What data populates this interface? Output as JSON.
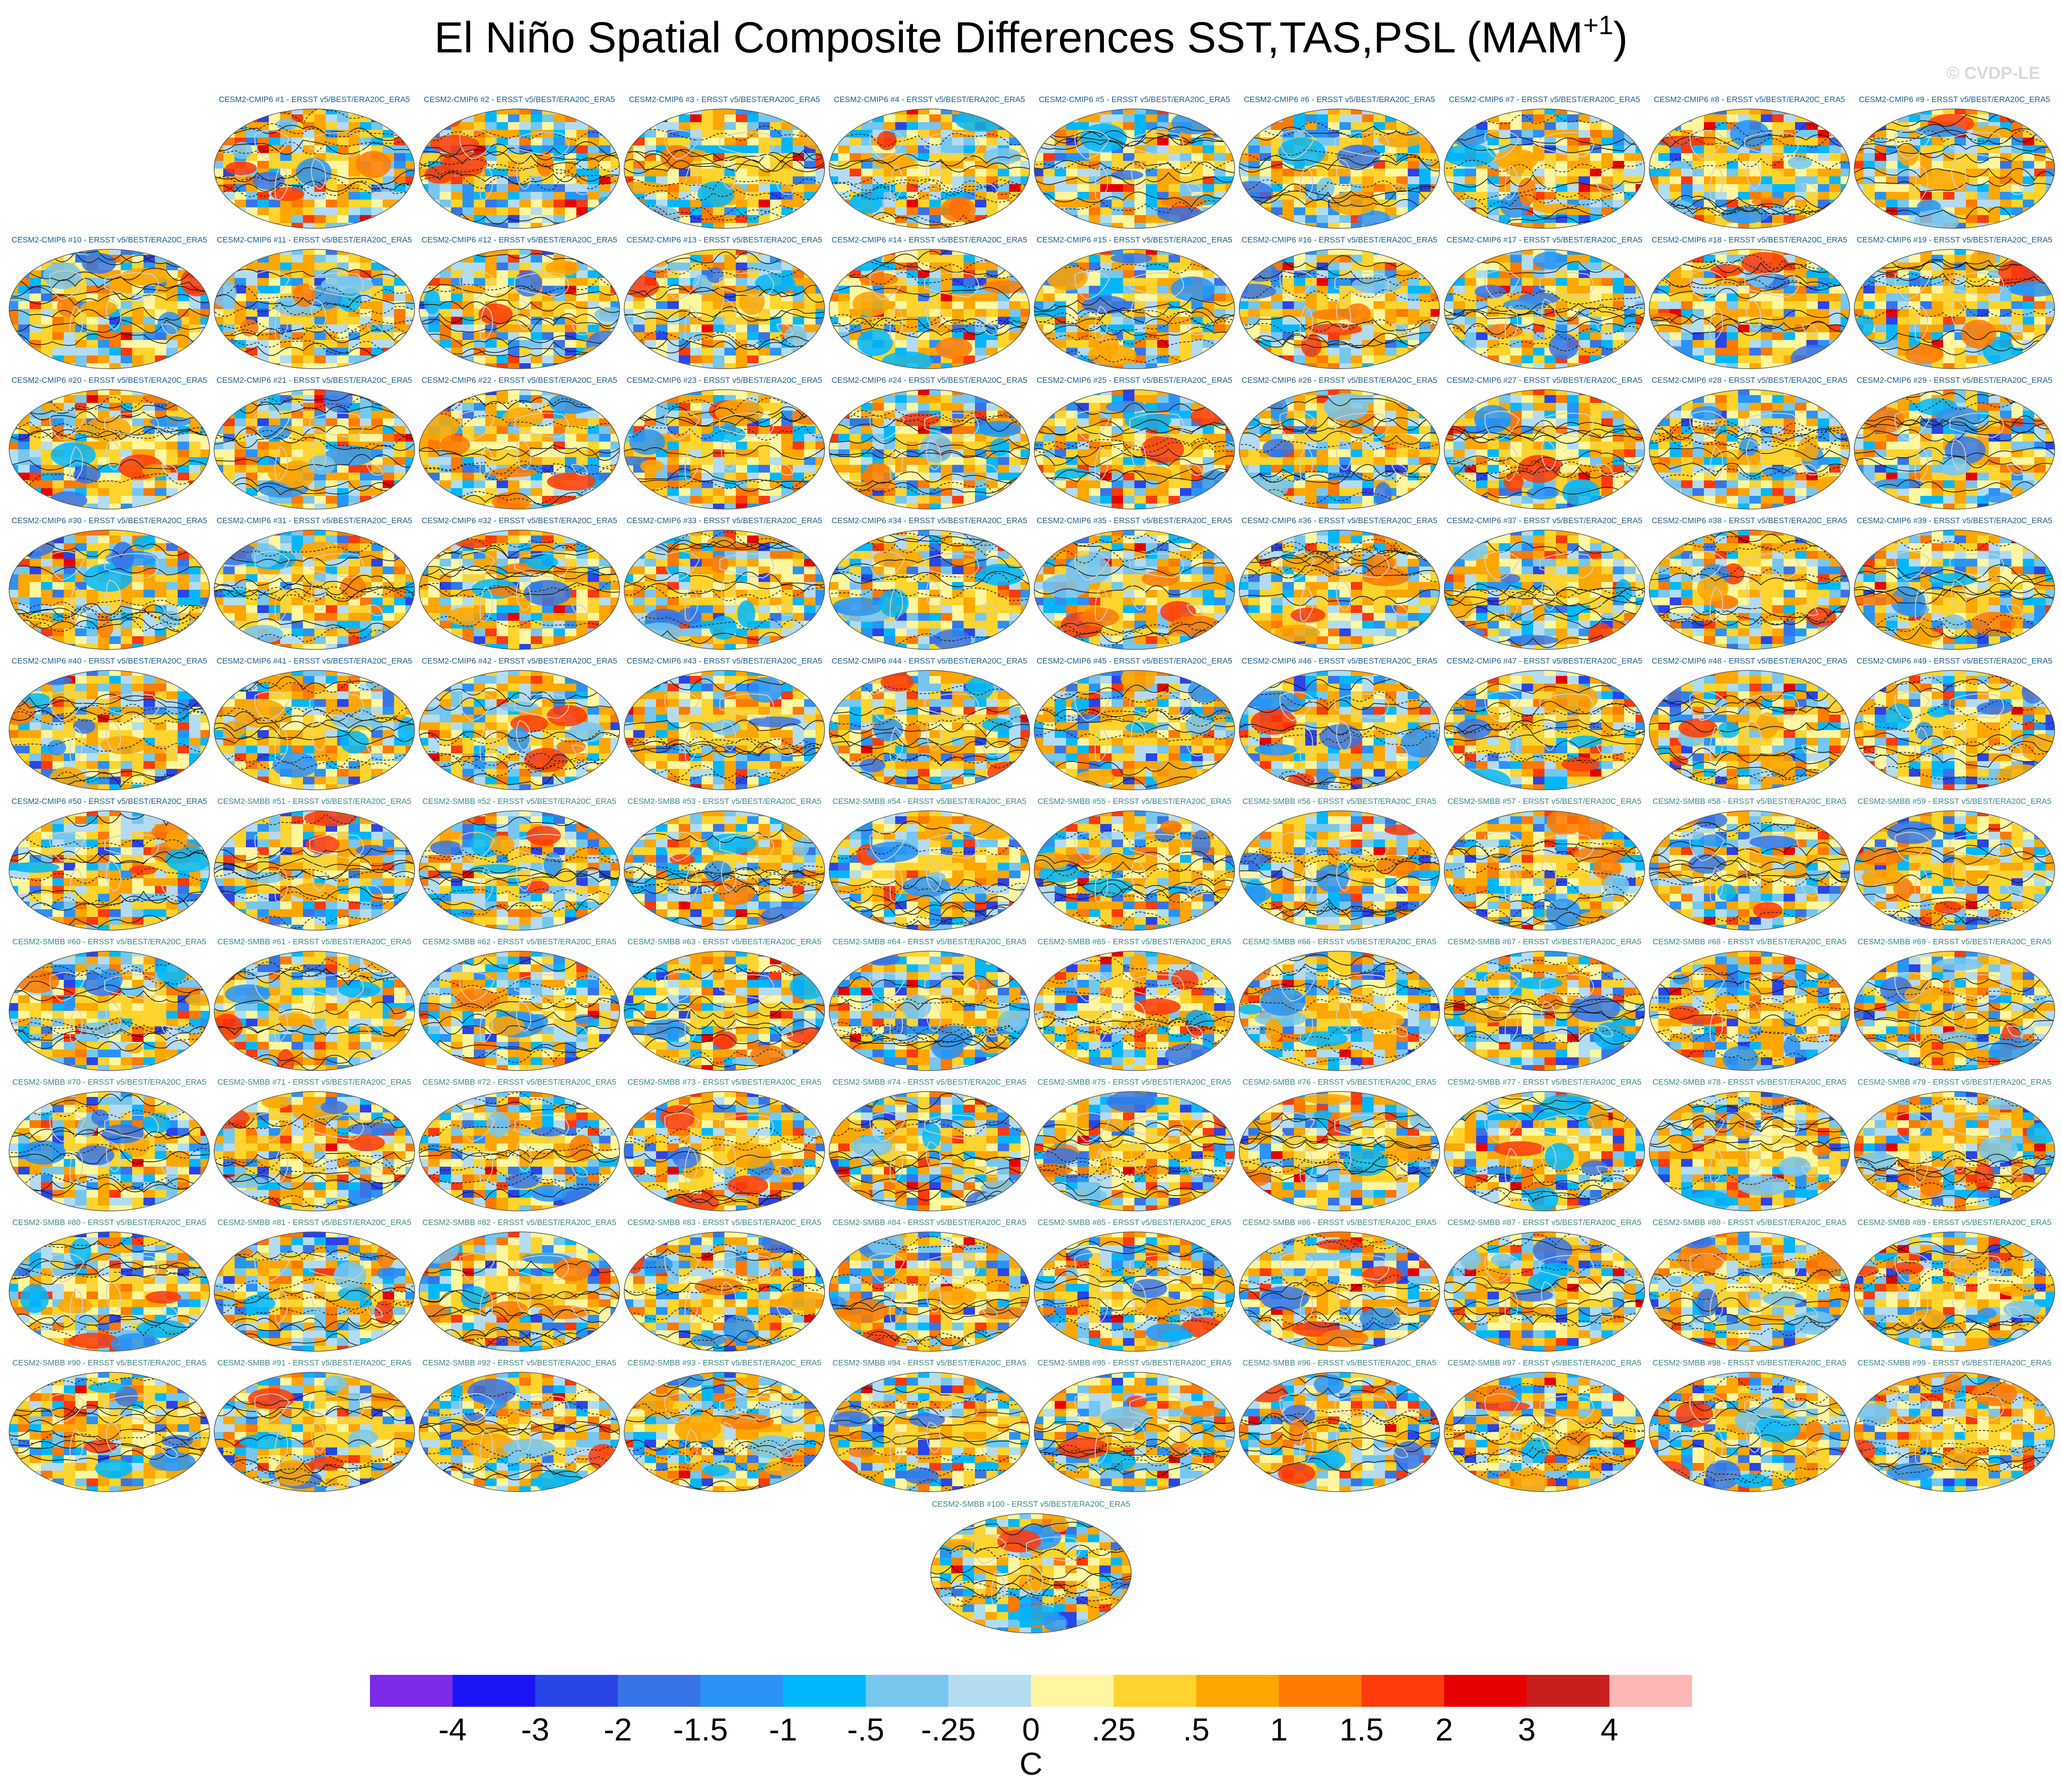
{
  "title": {
    "main": "El Niño Spatial Composite Differences SST,TAS,PSL (MAM",
    "superscript": "+1",
    "close": ")"
  },
  "watermark": "© CVDP-LE",
  "panel_labels": [
    "CESM2-CMIP6 #1 - ERSST v5/BEST/ERA20C_ERA5",
    "CESM2-CMIP6 #2 - ERSST v5/BEST/ERA20C_ERA5",
    "CESM2-CMIP6 #3 - ERSST v5/BEST/ERA20C_ERA5",
    "CESM2-CMIP6 #4 - ERSST v5/BEST/ERA20C_ERA5",
    "CESM2-CMIP6 #5 - ERSST v5/BEST/ERA20C_ERA5",
    "CESM2-CMIP6 #6 - ERSST v5/BEST/ERA20C_ERA5",
    "CESM2-CMIP6 #7 - ERSST v5/BEST/ERA20C_ERA5",
    "CESM2-CMIP6 #8 - ERSST v5/BEST/ERA20C_ERA5",
    "CESM2-CMIP6 #9 - ERSST v5/BEST/ERA20C_ERA5",
    "CESM2-CMIP6 #10 - ERSST v5/BEST/ERA20C_ERA5",
    "CESM2-CMIP6 #11 - ERSST v5/BEST/ERA20C_ERA5",
    "CESM2-CMIP6 #12 - ERSST v5/BEST/ERA20C_ERA5",
    "CESM2-CMIP6 #13 - ERSST v5/BEST/ERA20C_ERA5",
    "CESM2-CMIP6 #14 - ERSST v5/BEST/ERA20C_ERA5",
    "CESM2-CMIP6 #15 - ERSST v5/BEST/ERA20C_ERA5",
    "CESM2-CMIP6 #16 - ERSST v5/BEST/ERA20C_ERA5",
    "CESM2-CMIP6 #17 - ERSST v5/BEST/ERA20C_ERA5",
    "CESM2-CMIP6 #18 - ERSST v5/BEST/ERA20C_ERA5",
    "CESM2-CMIP6 #19 - ERSST v5/BEST/ERA20C_ERA5",
    "CESM2-CMIP6 #20 - ERSST v5/BEST/ERA20C_ERA5",
    "CESM2-CMIP6 #21 - ERSST v5/BEST/ERA20C_ERA5",
    "CESM2-CMIP6 #22 - ERSST v5/BEST/ERA20C_ERA5",
    "CESM2-CMIP6 #23 - ERSST v5/BEST/ERA20C_ERA5",
    "CESM2-CMIP6 #24 - ERSST v5/BEST/ERA20C_ERA5",
    "CESM2-CMIP6 #25 - ERSST v5/BEST/ERA20C_ERA5",
    "CESM2-CMIP6 #26 - ERSST v5/BEST/ERA20C_ERA5",
    "CESM2-CMIP6 #27 - ERSST v5/BEST/ERA20C_ERA5",
    "CESM2-CMIP6 #28 - ERSST v5/BEST/ERA20C_ERA5",
    "CESM2-CMIP6 #29 - ERSST v5/BEST/ERA20C_ERA5",
    "CESM2-CMIP6 #30 - ERSST v5/BEST/ERA20C_ERA5",
    "CESM2-CMIP6 #31 - ERSST v5/BEST/ERA20C_ERA5",
    "CESM2-CMIP6 #32 - ERSST v5/BEST/ERA20C_ERA5",
    "CESM2-CMIP6 #33 - ERSST v5/BEST/ERA20C_ERA5",
    "CESM2-CMIP6 #34 - ERSST v5/BEST/ERA20C_ERA5",
    "CESM2-CMIP6 #35 - ERSST v5/BEST/ERA20C_ERA5",
    "CESM2-CMIP6 #36 - ERSST v5/BEST/ERA20C_ERA5",
    "CESM2-CMIP6 #37 - ERSST v5/BEST/ERA20C_ERA5",
    "CESM2-CMIP6 #38 - ERSST v5/BEST/ERA20C_ERA5",
    "CESM2-CMIP6 #39 - ERSST v5/BEST/ERA20C_ERA5",
    "CESM2-CMIP6 #40 - ERSST v5/BEST/ERA20C_ERA5",
    "CESM2-CMIP6 #41 - ERSST v5/BEST/ERA20C_ERA5",
    "CESM2-CMIP6 #42 - ERSST v5/BEST/ERA20C_ERA5",
    "CESM2-CMIP6 #43 - ERSST v5/BEST/ERA20C_ERA5",
    "CESM2-CMIP6 #44 - ERSST v5/BEST/ERA20C_ERA5",
    "CESM2-CMIP6 #45 - ERSST v5/BEST/ERA20C_ERA5",
    "CESM2-CMIP6 #46 - ERSST v5/BEST/ERA20C_ERA5",
    "CESM2-CMIP6 #47 - ERSST v5/BEST/ERA20C_ERA5",
    "CESM2-CMIP6 #48 - ERSST v5/BEST/ERA20C_ERA5",
    "CESM2-CMIP6 #49 - ERSST v5/BEST/ERA20C_ERA5",
    "CESM2-CMIP6 #50 - ERSST v5/BEST/ERA20C_ERA5",
    "CESM2-SMBB #51 - ERSST v5/BEST/ERA20C_ERA5",
    "CESM2-SMBB #52 - ERSST v5/BEST/ERA20C_ERA5",
    "CESM2-SMBB #53 - ERSST v5/BEST/ERA20C_ERA5",
    "CESM2-SMBB #54 - ERSST v5/BEST/ERA20C_ERA5",
    "CESM2-SMBB #55 - ERSST v5/BEST/ERA20C_ERA5",
    "CESM2-SMBB #56 - ERSST v5/BEST/ERA20C_ERA5",
    "CESM2-SMBB #57 - ERSST v5/BEST/ERA20C_ERA5",
    "CESM2-SMBB #58 - ERSST v5/BEST/ERA20C_ERA5",
    "CESM2-SMBB #59 - ERSST v5/BEST/ERA20C_ERA5",
    "CESM2-SMBB #60 - ERSST v5/BEST/ERA20C_ERA5",
    "CESM2-SMBB #61 - ERSST v5/BEST/ERA20C_ERA5",
    "CESM2-SMBB #62 - ERSST v5/BEST/ERA20C_ERA5",
    "CESM2-SMBB #63 - ERSST v5/BEST/ERA20C_ERA5",
    "CESM2-SMBB #64 - ERSST v5/BEST/ERA20C_ERA5",
    "CESM2-SMBB #65 - ERSST v5/BEST/ERA20C_ERA5",
    "CESM2-SMBB #66 - ERSST v5/BEST/ERA20C_ERA5",
    "CESM2-SMBB #67 - ERSST v5/BEST/ERA20C_ERA5",
    "CESM2-SMBB #68 - ERSST v5/BEST/ERA20C_ERA5",
    "CESM2-SMBB #69 - ERSST v5/BEST/ERA20C_ERA5",
    "CESM2-SMBB #70 - ERSST v5/BEST/ERA20C_ERA5",
    "CESM2-SMBB #71 - ERSST v5/BEST/ERA20C_ERA5",
    "CESM2-SMBB #72 - ERSST v5/BEST/ERA20C_ERA5",
    "CESM2-SMBB #73 - ERSST v5/BEST/ERA20C_ERA5",
    "CESM2-SMBB #74 - ERSST v5/BEST/ERA20C_ERA5",
    "CESM2-SMBB #75 - ERSST v5/BEST/ERA20C_ERA5",
    "CESM2-SMBB #76 - ERSST v5/BEST/ERA20C_ERA5",
    "CESM2-SMBB #77 - ERSST v5/BEST/ERA20C_ERA5",
    "CESM2-SMBB #78 - ERSST v5/BEST/ERA20C_ERA5",
    "CESM2-SMBB #79 - ERSST v5/BEST/ERA20C_ERA5",
    "CESM2-SMBB #80 - ERSST v5/BEST/ERA20C_ERA5",
    "CESM2-SMBB #81 - ERSST v5/BEST/ERA20C_ERA5",
    "CESM2-SMBB #82 - ERSST v5/BEST/ERA20C_ERA5",
    "CESM2-SMBB #83 - ERSST v5/BEST/ERA20C_ERA5",
    "CESM2-SMBB #84 - ERSST v5/BEST/ERA20C_ERA5",
    "CESM2-SMBB #85 - ERSST v5/BEST/ERA20C_ERA5",
    "CESM2-SMBB #86 - ERSST v5/BEST/ERA20C_ERA5",
    "CESM2-SMBB #87 - ERSST v5/BEST/ERA20C_ERA5",
    "CESM2-SMBB #88 - ERSST v5/BEST/ERA20C_ERA5",
    "CESM2-SMBB #89 - ERSST v5/BEST/ERA20C_ERA5",
    "CESM2-SMBB #90 - ERSST v5/BEST/ERA20C_ERA5",
    "CESM2-SMBB #91 - ERSST v5/BEST/ERA20C_ERA5",
    "CESM2-SMBB #92 - ERSST v5/BEST/ERA20C_ERA5",
    "CESM2-SMBB #93 - ERSST v5/BEST/ERA20C_ERA5",
    "CESM2-SMBB #94 - ERSST v5/BEST/ERA20C_ERA5",
    "CESM2-SMBB #95 - ERSST v5/BEST/ERA20C_ERA5",
    "CESM2-SMBB #96 - ERSST v5/BEST/ERA20C_ERA5",
    "CESM2-SMBB #97 - ERSST v5/BEST/ERA20C_ERA5",
    "CESM2-SMBB #98 - ERSST v5/BEST/ERA20C_ERA5",
    "CESM2-SMBB #99 - ERSST v5/BEST/ERA20C_ERA5",
    "CESM2-SMBB #100 - ERSST v5/BEST/ERA20C_ERA5"
  ],
  "colors": {
    "cmip6_label": "#1f5f8f",
    "smbb_label": "#3a8a88",
    "map_outline": "#555555",
    "contour": "#1a1a1a",
    "coastline": "#cfcfcf"
  },
  "colorbar": {
    "tick_labels": [
      "-4",
      "-3",
      "-2",
      "-1.5",
      "-1",
      "-.5",
      "-.25",
      "0",
      ".25",
      ".5",
      "1",
      "1.5",
      "2",
      "3",
      "4"
    ],
    "colors": [
      "#7b2ae8",
      "#1b14f5",
      "#2945e6",
      "#3775e6",
      "#2a93f5",
      "#00b7fb",
      "#77c6ee",
      "#b3dcf1",
      "#fff6a0",
      "#ffd42e",
      "#ffa600",
      "#ff7a00",
      "#ff3a0b",
      "#e60000",
      "#c91e1e",
      "#ffb6b6"
    ],
    "units": "C"
  },
  "chart_data": {
    "type": "heatmap",
    "title": "El Niño Spatial Composite Differences SST,TAS,PSL (MAM+1)",
    "panel_count": 100,
    "projection": "global map",
    "fill_variable_units": "C",
    "colorbar_levels": [
      -4,
      -3,
      -2,
      -1.5,
      -1,
      -0.5,
      -0.25,
      0,
      0.25,
      0.5,
      1,
      1.5,
      2,
      3,
      4
    ],
    "overlay": "PSL contours (solid positive, dashed negative)"
  }
}
